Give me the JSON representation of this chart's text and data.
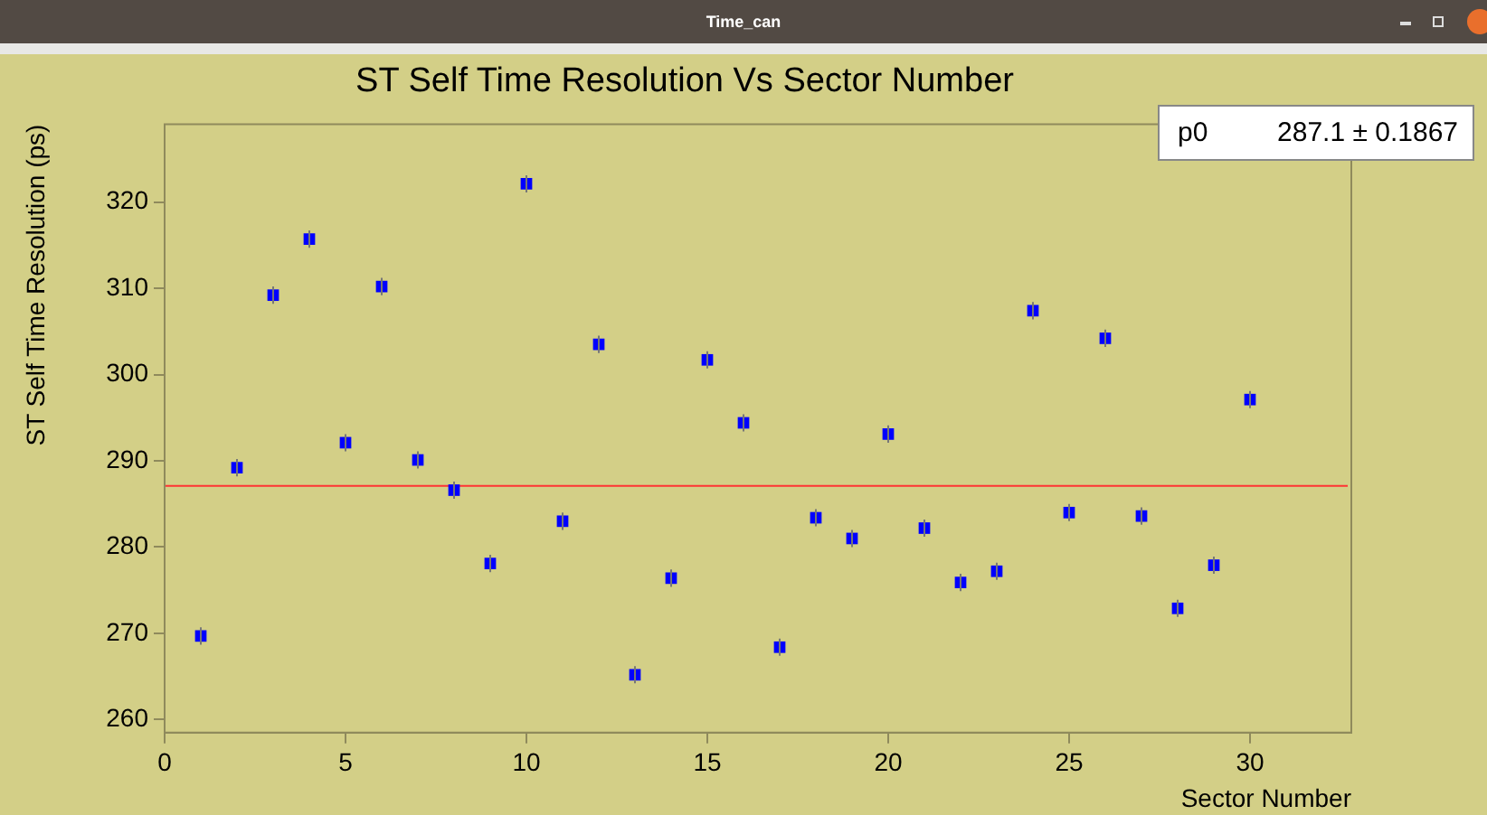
{
  "chart_data": {
    "type": "scatter",
    "title": "ST Self Time Resolution Vs Sector Number",
    "xlabel": "Sector Number",
    "ylabel": "ST Self Time Resolution (ps)",
    "x": [
      1,
      2,
      3,
      4,
      5,
      6,
      7,
      8,
      9,
      10,
      11,
      12,
      13,
      14,
      15,
      16,
      17,
      18,
      19,
      20,
      21,
      22,
      23,
      24,
      25,
      26,
      27,
      28,
      29,
      30
    ],
    "series": [
      {
        "color": "#0000ff",
        "values": [
          269.7,
          289.2,
          309.2,
          315.7,
          292.1,
          310.2,
          290.1,
          286.6,
          278.1,
          322.1,
          283.0,
          303.5,
          265.2,
          276.4,
          301.7,
          294.4,
          268.4,
          283.4,
          281.0,
          293.1,
          282.2,
          275.9,
          277.2,
          307.4,
          284.0,
          304.2,
          283.6,
          272.9,
          277.9,
          297.1
        ],
        "errors": [
          1,
          1,
          1,
          1,
          1,
          1,
          1,
          1,
          1,
          1,
          1,
          1,
          1,
          1,
          1,
          1,
          1,
          1,
          1,
          1,
          1,
          1,
          1,
          1,
          1,
          1,
          1,
          1,
          1,
          1
        ]
      }
    ],
    "xlim": [
      0,
      32.8
    ],
    "xticks": [
      0,
      5,
      10,
      15,
      20,
      25,
      30
    ],
    "ylim": [
      258.5,
      329
    ],
    "yticks": [
      260,
      270,
      280,
      290,
      300,
      310,
      320
    ],
    "ref_lines": [
      {
        "axis": "y",
        "value": 287.1,
        "color": "#ff3333"
      }
    ],
    "annotations": [
      "Time_can",
      "p0",
      "287.1 ± 0.1867"
    ],
    "grid": false,
    "legend": false,
    "marker": "square"
  }
}
